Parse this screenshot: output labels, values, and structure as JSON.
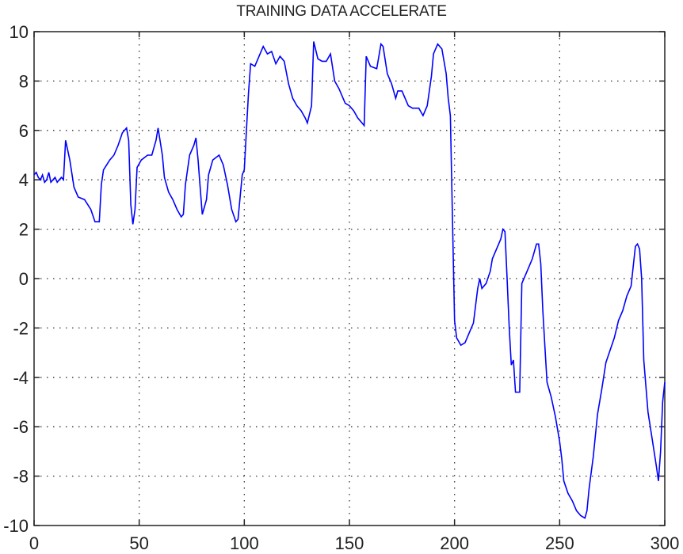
{
  "chart_data": {
    "type": "line",
    "title": "TRAINING DATA ACCELERATE",
    "xlabel": "",
    "ylabel": "",
    "xlim": [
      0,
      300
    ],
    "ylim": [
      -10,
      10
    ],
    "grid": true,
    "legend": null,
    "x_ticks": [
      0,
      50,
      100,
      150,
      200,
      250,
      300
    ],
    "y_ticks": [
      -10,
      -8,
      -6,
      -4,
      -2,
      0,
      2,
      4,
      6,
      8,
      10
    ],
    "line_color": "#0000ff",
    "series": [
      {
        "name": "accelerate",
        "x": [
          0,
          1,
          2,
          3,
          4,
          5,
          6,
          7,
          8,
          9,
          10,
          11,
          12,
          13,
          14,
          15,
          17,
          19,
          21,
          24,
          27,
          29,
          31,
          32,
          33,
          36,
          38,
          40,
          42,
          44,
          45,
          46,
          47,
          48,
          49,
          51,
          54,
          56,
          58,
          59,
          61,
          62,
          64,
          66,
          68,
          70,
          71,
          72,
          74,
          76,
          77,
          78,
          79,
          80,
          82,
          83,
          85,
          88,
          90,
          92,
          94,
          96,
          97,
          99,
          100,
          101,
          102,
          103,
          105,
          107,
          109,
          111,
          113,
          115,
          117,
          119,
          121,
          123,
          125,
          127,
          129,
          130,
          132,
          133,
          135,
          137,
          139,
          141,
          143,
          145,
          148,
          150,
          152,
          154,
          155,
          157,
          158,
          160,
          163,
          165,
          166,
          168,
          170,
          172,
          173,
          175,
          178,
          180,
          183,
          185,
          187,
          189,
          190,
          192,
          194,
          196,
          197,
          198,
          199,
          200,
          201,
          203,
          205,
          207,
          209,
          211,
          212,
          213,
          215,
          217,
          218,
          220,
          222,
          223,
          224,
          225,
          226,
          227,
          228,
          229,
          231,
          232,
          234,
          236,
          237,
          239,
          240,
          241,
          242,
          243,
          244,
          246,
          248,
          250,
          251,
          252,
          254,
          256,
          258,
          260,
          262,
          263,
          264,
          266,
          268,
          270,
          272,
          274,
          276,
          278,
          280,
          282,
          284,
          286,
          287,
          288,
          289,
          290,
          292,
          294,
          296,
          297,
          298,
          299,
          300
        ],
        "values": [
          4.2,
          4.3,
          4.1,
          4.0,
          4.2,
          3.9,
          4.0,
          4.3,
          3.9,
          4.0,
          4.1,
          3.9,
          4.0,
          4.1,
          4.0,
          5.6,
          4.8,
          3.7,
          3.3,
          3.2,
          2.8,
          2.3,
          2.3,
          3.8,
          4.4,
          4.8,
          5.0,
          5.4,
          5.9,
          6.1,
          5.6,
          3.0,
          2.2,
          2.8,
          4.5,
          4.8,
          5.0,
          5.0,
          5.6,
          6.1,
          5.0,
          4.1,
          3.5,
          3.2,
          2.8,
          2.5,
          2.6,
          3.8,
          5.0,
          5.4,
          5.7,
          4.8,
          3.7,
          2.6,
          3.2,
          4.2,
          4.8,
          5.0,
          4.6,
          3.8,
          2.8,
          2.3,
          2.4,
          4.2,
          4.4,
          6.0,
          7.5,
          8.7,
          8.6,
          9.0,
          9.4,
          9.1,
          9.2,
          8.7,
          9.0,
          8.8,
          7.9,
          7.3,
          7.0,
          6.8,
          6.5,
          6.3,
          7.0,
          9.6,
          8.9,
          8.8,
          8.8,
          9.1,
          8.0,
          7.7,
          7.1,
          7.0,
          6.8,
          6.5,
          6.4,
          6.2,
          9.0,
          8.6,
          8.5,
          9.5,
          9.4,
          8.3,
          7.9,
          7.3,
          7.6,
          7.6,
          7.0,
          6.9,
          6.9,
          6.6,
          7.0,
          8.2,
          9.1,
          9.5,
          9.3,
          8.3,
          7.3,
          6.6,
          2.5,
          -1.7,
          -2.4,
          -2.7,
          -2.6,
          -2.2,
          -1.8,
          -0.4,
          0.0,
          -0.4,
          -0.2,
          0.3,
          0.8,
          1.2,
          1.6,
          2.0,
          1.9,
          0.0,
          -2.0,
          -3.5,
          -3.3,
          -4.6,
          -4.6,
          -0.2,
          0.2,
          0.6,
          0.8,
          1.4,
          1.4,
          0.6,
          -1.3,
          -2.8,
          -4.2,
          -4.8,
          -5.6,
          -6.6,
          -7.3,
          -8.2,
          -8.7,
          -9.0,
          -9.4,
          -9.6,
          -9.7,
          -9.4,
          -8.5,
          -7.2,
          -5.5,
          -4.5,
          -3.4,
          -2.9,
          -2.4,
          -1.7,
          -1.3,
          -0.7,
          -0.3,
          1.3,
          1.4,
          1.2,
          0.0,
          -3.3,
          -5.4,
          -6.5,
          -7.6,
          -8.2,
          -7.0,
          -5.0,
          -4.2
        ]
      }
    ]
  }
}
